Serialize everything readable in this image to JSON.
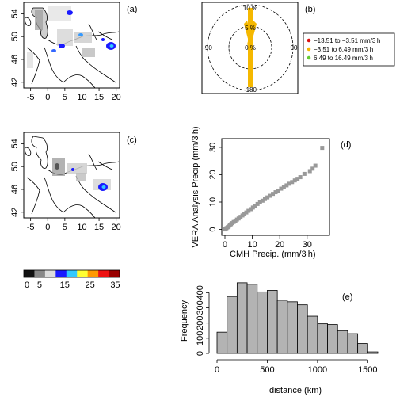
{
  "panels": {
    "a": {
      "label": "(a)"
    },
    "b": {
      "label": "(b)"
    },
    "c": {
      "label": "(c)"
    },
    "d": {
      "label": "(d)"
    },
    "e": {
      "label": "(e)"
    }
  },
  "maps": {
    "x_ticks": [
      "-5",
      "0",
      "5",
      "10",
      "15",
      "20"
    ],
    "y_ticks": [
      "42",
      "46",
      "50",
      "54"
    ]
  },
  "colorbar": {
    "ticks": [
      "0",
      "5",
      "15",
      "25",
      "35"
    ],
    "colors": [
      "#111111",
      "#888888",
      "#dddddd",
      "#1a1aff",
      "#33c9ff",
      "#ffff33",
      "#ff9900",
      "#ee1111",
      "#990000"
    ]
  },
  "polar": {
    "ring_labels": [
      "10 %",
      "5 %",
      "0 %"
    ],
    "angle_labels": [
      "180",
      "90",
      "-180",
      "-90"
    ],
    "direction_labels": [
      "-90",
      "90",
      "-180",
      "180"
    ]
  },
  "legend": {
    "items": [
      {
        "label": "−13.51 to −3.51 mm/3 h",
        "color": "#dd1111"
      },
      {
        "label": "−3.51 to 6.49 mm/3 h",
        "color": "#f5b800"
      },
      {
        "label": "6.49 to 16.49 mm/3 h",
        "color": "#66cc33"
      }
    ]
  },
  "chart_data": [
    {
      "type": "scatter",
      "xlabel": "CMH Precip. (mm/3 h)",
      "ylabel": "VERA Analysis Precip (mm/3 h)",
      "xlim": [
        0,
        37
      ],
      "ylim": [
        -1,
        32
      ],
      "x_ticks": [
        0,
        10,
        20,
        30
      ],
      "y_ticks": [
        0,
        10,
        20,
        30
      ],
      "x": [
        0,
        0.3,
        0.6,
        1,
        1.4,
        1.8,
        2.2,
        2.7,
        3.2,
        3.8,
        4.4,
        5,
        5.7,
        6.4,
        7.1,
        7.8,
        8.6,
        9.4,
        10.2,
        11,
        11.9,
        12.8,
        13.7,
        14.6,
        15.5,
        16.5,
        17.5,
        18.5,
        19.5,
        20.5,
        21.5,
        22.5,
        23.5,
        24.5,
        25.5,
        26.5,
        27.5,
        29,
        31,
        32,
        33,
        35.5
      ],
      "y": [
        0,
        0.2,
        0.5,
        0.8,
        1.1,
        1.5,
        1.9,
        2.3,
        2.7,
        3.1,
        3.6,
        4,
        4.6,
        5.1,
        5.7,
        6.2,
        6.8,
        7.4,
        8,
        8.6,
        9.3,
        9.9,
        10.5,
        11.1,
        11.7,
        12.3,
        13,
        13.6,
        14.2,
        14.9,
        15.5,
        16.1,
        16.7,
        17.3,
        17.9,
        18.5,
        19.1,
        20.3,
        21.3,
        22.2,
        23.3,
        29.8
      ],
      "color": "#999999"
    },
    {
      "type": "bar",
      "xlabel": "distance (km)",
      "ylabel": "Frequency",
      "xlim": [
        0,
        1600
      ],
      "ylim": [
        0,
        480
      ],
      "x_ticks": [
        0,
        500,
        1000,
        1500
      ],
      "y_ticks": [
        0,
        100,
        200,
        300,
        400
      ],
      "bin_width": 100,
      "bin_starts": [
        0,
        100,
        200,
        300,
        400,
        500,
        600,
        700,
        800,
        900,
        1000,
        1100,
        1200,
        1300,
        1400,
        1500
      ],
      "values": [
        140,
        375,
        465,
        455,
        405,
        415,
        350,
        340,
        320,
        245,
        195,
        190,
        150,
        130,
        65,
        10
      ],
      "color": "#b3b3b3"
    },
    {
      "type": "rose",
      "angle_labels": [
        "180",
        "90",
        "-180",
        "-90"
      ],
      "ring_labels": [
        "10 %",
        "5 %",
        "0 %"
      ],
      "color": "#f5b800"
    }
  ]
}
